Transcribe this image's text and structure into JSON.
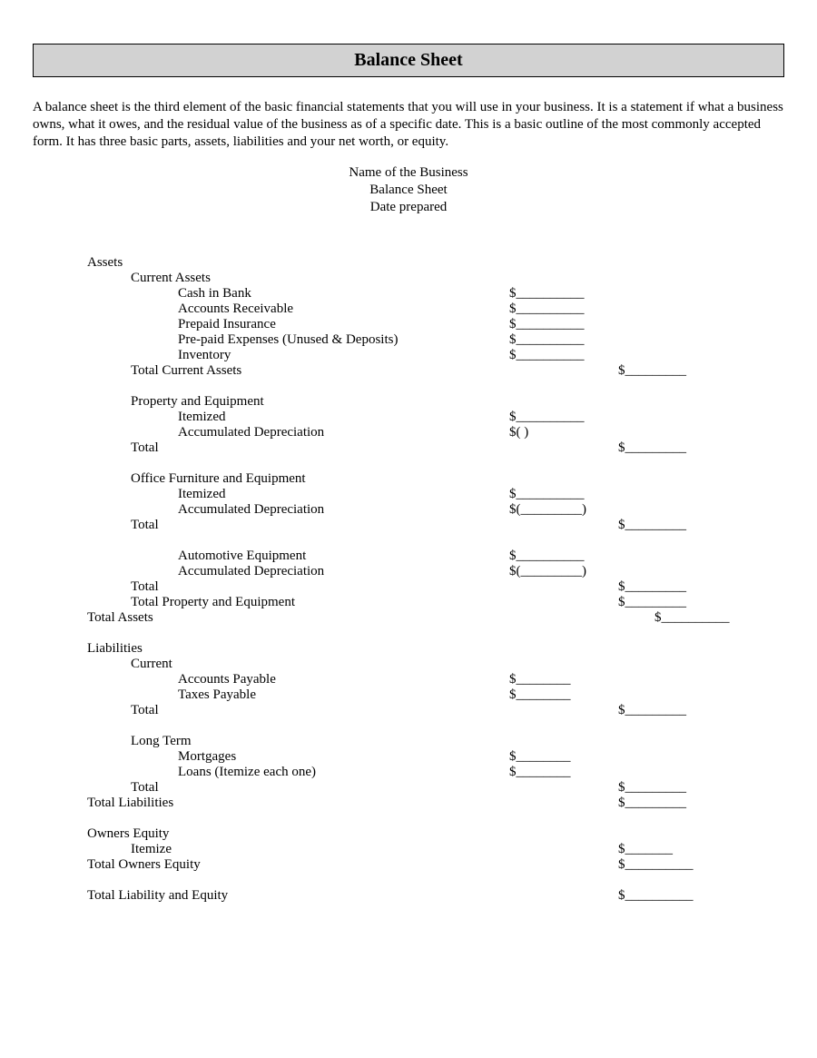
{
  "title": "Balance Sheet",
  "intro": "A balance sheet is the third element of the basic financial statements that you will use in your business. It is a statement if what a business owns, what it owes, and the residual value of the business as of a specific date. This is a basic outline of the most commonly accepted form. It has three basic parts, assets, liabilities and your net worth, or equity.",
  "header": {
    "line1": "Name of the Business",
    "line2": "Balance Sheet",
    "line3": "Date prepared"
  },
  "blanks": {
    "b10": "$__________",
    "b9": "$_________",
    "b8": "$________",
    "b7": "$_______",
    "paren_open": "$(                 )",
    "paren_b9": "$(_________)"
  },
  "sections": {
    "assets": {
      "heading": "Assets",
      "current": {
        "heading": "Current Assets",
        "items": [
          "Cash in Bank",
          "Accounts Receivable",
          "Prepaid Insurance",
          "Pre-paid Expenses (Unused & Deposits)",
          "Inventory"
        ],
        "total_label": "Total Current Assets"
      },
      "property": {
        "heading": "Property and Equipment",
        "itemized": "Itemized",
        "accdep": "Accumulated Depreciation",
        "total_label": "Total"
      },
      "office": {
        "heading": "Office Furniture and Equipment",
        "itemized": "Itemized",
        "accdep": "Accumulated Depreciation",
        "total_label": "Total"
      },
      "auto": {
        "heading": "Automotive Equipment",
        "accdep": "Accumulated Depreciation",
        "total_label": "Total",
        "total_pe_label": "Total Property and Equipment"
      },
      "total_assets_label": "Total Assets"
    },
    "liabilities": {
      "heading": "Liabilities",
      "current": {
        "heading": "Current",
        "items": [
          "Accounts Payable",
          "Taxes Payable"
        ],
        "total_label": "Total"
      },
      "longterm": {
        "heading": "Long Term",
        "items": [
          "Mortgages",
          "Loans (Itemize each one)"
        ],
        "total_label": "Total"
      },
      "total_label": "Total Liabilities"
    },
    "equity": {
      "heading": "Owners Equity",
      "itemize": "Itemize",
      "total_label": "Total Owners Equity"
    },
    "total_le_label": "Total Liability and Equity"
  }
}
